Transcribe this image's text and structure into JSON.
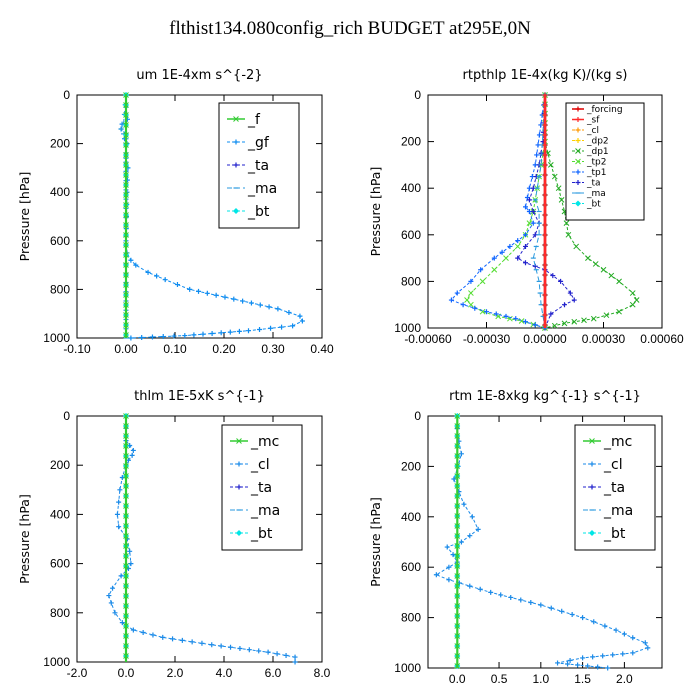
{
  "figure": {
    "title": "flthist134.080config_rich  BUDGET at295E,0N"
  },
  "colors": {
    "_f": "#33cc33",
    "_gf": "#0e8cf0",
    "_ta": "#2222cc",
    "_ma": "#2a9adf",
    "_bt": "#00e6e6",
    "_mc": "#33cc33",
    "_cl": "#1a8ae8",
    "_forcing": "#dd0000",
    "_sf": "#ff2a2a",
    "_cl_small": "#ff9900",
    "_dp2": "#ffd000",
    "_dp1": "#22aa22",
    "_tp2": "#55dd33",
    "_tp1": "#1166ff"
  },
  "chart_data": [
    {
      "type": "line",
      "title": "um   1E-4xm s^{-2}",
      "ylabel": "Pressure [hPa]",
      "xlim": [
        -0.1,
        0.4
      ],
      "ylim": [
        1000,
        0
      ],
      "xticks": [
        "-0.10",
        "0.00",
        "0.10",
        "0.20",
        "0.30",
        "0.40"
      ],
      "xtick_values": [
        -0.1,
        0.0,
        0.1,
        0.2,
        0.3,
        0.4
      ],
      "yticks": [
        "0",
        "200",
        "400",
        "600",
        "800",
        "1000"
      ],
      "ytick_values": [
        0,
        200,
        400,
        600,
        800,
        1000
      ],
      "legend": {
        "position": "top-right",
        "size": "big",
        "entries": [
          "_f",
          "_gf",
          "_ta",
          "_ma",
          "_bt"
        ]
      },
      "series": [
        {
          "name": "_f",
          "y": [
            0,
            100,
            200,
            300,
            400,
            500,
            600,
            700,
            800,
            900,
            1000
          ],
          "x": [
            0,
            0,
            0,
            0,
            0,
            0,
            0,
            0,
            0,
            0,
            0
          ]
        },
        {
          "name": "_gf",
          "y": [
            0,
            50,
            100,
            120,
            140,
            160,
            180,
            200,
            260,
            300,
            400,
            500,
            600,
            650,
            680,
            700,
            730,
            760,
            800,
            840,
            880,
            910,
            930,
            950,
            970,
            990,
            1000
          ],
          "x": [
            0,
            0,
            0.003,
            -0.008,
            -0.01,
            0,
            -0.003,
            0.002,
            0,
            0.004,
            0.002,
            0.001,
            0,
            0.002,
            0.01,
            0.02,
            0.045,
            0.08,
            0.13,
            0.22,
            0.31,
            0.355,
            0.36,
            0.34,
            0.25,
            0.12,
            0.01
          ]
        },
        {
          "name": "_ta",
          "y": [
            0,
            200,
            400,
            600,
            800,
            1000
          ],
          "x": [
            0,
            0,
            0,
            0,
            0,
            0
          ]
        },
        {
          "name": "_ma",
          "y": [
            0,
            120,
            140,
            160,
            180,
            200,
            1000
          ],
          "x": [
            0,
            -0.005,
            -0.01,
            -0.005,
            0,
            0,
            0
          ]
        },
        {
          "name": "_bt",
          "y": [
            0,
            1000
          ],
          "x": [
            0,
            0
          ]
        }
      ]
    },
    {
      "type": "line",
      "title": "rtpthlp   1E-4x(kg K)/(kg s)",
      "ylabel": "Pressure [hPa]",
      "xlim": [
        -0.0006,
        0.0006
      ],
      "ylim": [
        1000,
        0
      ],
      "xticks": [
        "-0.00060",
        "-0.00030",
        "0.00000",
        "0.00030",
        "0.00060"
      ],
      "xtick_values": [
        -0.0006,
        -0.0003,
        0.0,
        0.0003,
        0.0006
      ],
      "yticks": [
        "0",
        "200",
        "400",
        "600",
        "800",
        "1000"
      ],
      "ytick_values": [
        0,
        200,
        400,
        600,
        800,
        1000
      ],
      "legend": {
        "position": "top-right",
        "size": "small",
        "entries": [
          "_forcing",
          "_sf",
          "_cl",
          "_dp2",
          "_dp1",
          "_tp2",
          "_tp1",
          "_ta",
          "_ma",
          "_bt"
        ]
      },
      "series": [
        {
          "name": "_forcing",
          "y": [
            0,
            1000
          ],
          "x": [
            0,
            0
          ]
        },
        {
          "name": "_sf",
          "y": [
            0,
            1000
          ],
          "x": [
            0,
            0
          ]
        },
        {
          "name": "_cl",
          "y": [
            0,
            940,
            1000
          ],
          "x": [
            0,
            0,
            0
          ]
        },
        {
          "name": "_dp2",
          "y": [
            0,
            950,
            1000
          ],
          "x": [
            0,
            0,
            0
          ]
        },
        {
          "name": "_dp1",
          "y": [
            0,
            200,
            300,
            400,
            500,
            550,
            600,
            650,
            700,
            750,
            800,
            850,
            880,
            900,
            930,
            960,
            980,
            1000
          ],
          "x": [
            0,
            0,
            3e-05,
            7e-05,
            0.0001,
            0.00011,
            0.00012,
            0.00016,
            0.00022,
            0.0003,
            0.00038,
            0.00045,
            0.00047,
            0.00045,
            0.00038,
            0.00025,
            0.0001,
            0
          ]
        },
        {
          "name": "_tp2",
          "y": [
            0,
            200,
            300,
            400,
            500,
            600,
            650,
            700,
            750,
            800,
            850,
            880,
            900,
            930,
            950,
            970,
            1000
          ],
          "x": [
            0,
            0,
            -2e-05,
            -4e-05,
            -6e-05,
            -0.0001,
            -0.00014,
            -0.0002,
            -0.00026,
            -0.00032,
            -0.00038,
            -0.0004,
            -0.00038,
            -0.00032,
            -0.00024,
            -0.00012,
            0
          ]
        },
        {
          "name": "_tp1",
          "y": [
            0,
            300,
            400,
            480,
            500,
            550,
            600,
            650,
            700,
            750,
            800,
            850,
            880,
            900,
            930,
            960,
            1000
          ],
          "x": [
            0,
            -5e-05,
            -8e-05,
            -0.0001,
            -8e-05,
            -6e-05,
            -0.0001,
            -0.00018,
            -0.00026,
            -0.00033,
            -0.00038,
            -0.00045,
            -0.00048,
            -0.00042,
            -0.0003,
            -0.00015,
            0
          ]
        },
        {
          "name": "_ta",
          "y": [
            0,
            200,
            300,
            400,
            450,
            500,
            550,
            600,
            650,
            700,
            720,
            750,
            800,
            850,
            880,
            900,
            940,
            1000
          ],
          "x": [
            0,
            -1e-05,
            -3e-05,
            -6e-05,
            -8e-05,
            -6e-05,
            -3e-05,
            -5e-05,
            -0.0001,
            -0.00014,
            -0.0001,
            0,
            8e-05,
            0.00013,
            0.00015,
            0.0001,
            3e-05,
            0
          ]
        },
        {
          "name": "_ma",
          "y": [
            0,
            300,
            450,
            500,
            600,
            700,
            800,
            900,
            1000
          ],
          "x": [
            0,
            -2e-05,
            -5e-05,
            -3e-05,
            -3e-05,
            -6e-05,
            -3e-05,
            -2e-05,
            0
          ]
        },
        {
          "name": "_bt",
          "y": [
            0,
            1000
          ],
          "x": [
            0,
            0
          ]
        }
      ]
    },
    {
      "type": "line",
      "title": "thlm   1E-5xK s^{-1}",
      "ylabel": "Pressure [hPa]",
      "xlim": [
        -2.0,
        8.0
      ],
      "ylim": [
        1000,
        0
      ],
      "xticks": [
        "-2.0",
        "0.0",
        "2.0",
        "4.0",
        "6.0",
        "8.0"
      ],
      "xtick_values": [
        -2,
        0,
        2,
        4,
        6,
        8
      ],
      "yticks": [
        "0",
        "200",
        "400",
        "600",
        "800",
        "1000"
      ],
      "ytick_values": [
        0,
        200,
        400,
        600,
        800,
        1000
      ],
      "legend": {
        "position": "top-right",
        "size": "big",
        "entries": [
          "_mc",
          "_cl",
          "_ta",
          "_ma",
          "_bt"
        ]
      },
      "series": [
        {
          "name": "_mc",
          "y": [
            0,
            200,
            400,
            600,
            800,
            1000
          ],
          "x": [
            0,
            0,
            0,
            0,
            0,
            0
          ]
        },
        {
          "name": "_cl",
          "y": [
            0,
            100,
            120,
            140,
            160,
            180,
            200,
            250,
            300,
            350,
            400,
            450,
            500,
            550,
            600,
            620,
            650,
            700,
            730,
            760,
            800,
            840,
            870,
            900,
            930,
            960,
            980,
            1000
          ],
          "x": [
            0,
            0,
            0.15,
            0.3,
            0.25,
            0.1,
            0,
            -0.15,
            -0.25,
            -0.3,
            -0.35,
            -0.3,
            0.05,
            0.15,
            0.2,
            0.1,
            -0.2,
            -0.55,
            -0.7,
            -0.6,
            -0.45,
            -0.15,
            0.3,
            1.5,
            3.5,
            5.8,
            6.9,
            6.9
          ]
        },
        {
          "name": "_ta",
          "y": [
            0,
            1000
          ],
          "x": [
            0,
            0
          ]
        },
        {
          "name": "_ma",
          "y": [
            0,
            1000
          ],
          "x": [
            0,
            0
          ]
        },
        {
          "name": "_bt",
          "y": [
            0,
            1000
          ],
          "x": [
            0,
            0
          ]
        }
      ]
    },
    {
      "type": "line",
      "title": "rtm   1E-8xkg kg^{-1} s^{-1}",
      "ylabel": "Pressure [hPa]",
      "xlim": [
        -0.35,
        2.45
      ],
      "ylim": [
        1000,
        0
      ],
      "xticks": [
        "0.0",
        "0.5",
        "1.0",
        "1.5",
        "2.0"
      ],
      "xtick_values": [
        0,
        0.5,
        1.0,
        1.5,
        2.0
      ],
      "yticks": [
        "0",
        "200",
        "400",
        "600",
        "800",
        "1000"
      ],
      "ytick_values": [
        0,
        200,
        400,
        600,
        800,
        1000
      ],
      "legend": {
        "position": "top-right",
        "size": "big",
        "entries": [
          "_mc",
          "_cl",
          "_ta",
          "_ma",
          "_bt"
        ]
      },
      "series": [
        {
          "name": "_mc",
          "y": [
            0,
            200,
            400,
            600,
            800,
            1000
          ],
          "x": [
            0,
            0,
            0,
            0,
            0,
            0
          ]
        },
        {
          "name": "_cl",
          "y": [
            0,
            50,
            100,
            150,
            200,
            250,
            300,
            350,
            400,
            450,
            500,
            520,
            550,
            580,
            600,
            630,
            650,
            700,
            750,
            800,
            850,
            880,
            900,
            920,
            940,
            960,
            980,
            1000
          ],
          "x": [
            0,
            0,
            0.02,
            0.05,
            0.01,
            -0.04,
            0.02,
            0.08,
            0.18,
            0.25,
            0.05,
            -0.12,
            -0.05,
            0.0,
            -0.1,
            -0.25,
            -0.1,
            0.4,
            1.0,
            1.5,
            1.9,
            2.1,
            2.25,
            2.28,
            2.1,
            1.5,
            1.2,
            1.8
          ]
        },
        {
          "name": "_ta",
          "y": [
            0,
            1000
          ],
          "x": [
            0,
            0
          ]
        },
        {
          "name": "_ma",
          "y": [
            0,
            1000
          ],
          "x": [
            0,
            0
          ]
        },
        {
          "name": "_bt",
          "y": [
            0,
            1000
          ],
          "x": [
            0,
            0
          ]
        }
      ]
    }
  ]
}
